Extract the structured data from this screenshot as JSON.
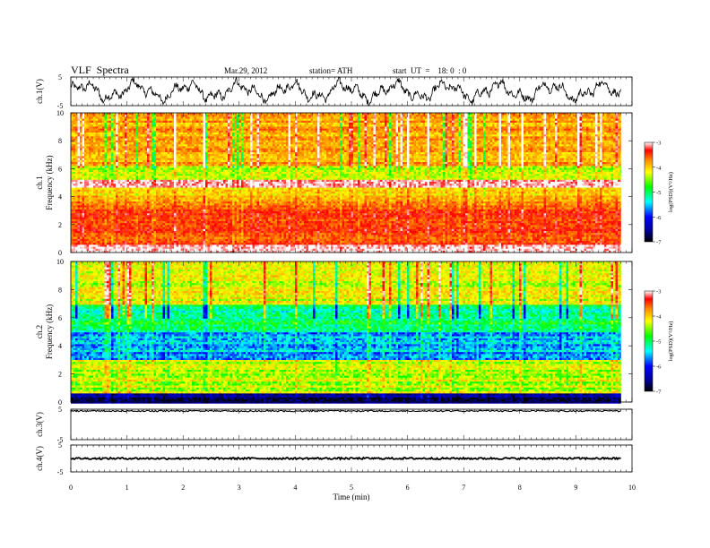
{
  "header": {
    "title": "VLF  Spectra",
    "date": "Mar.29, 2012",
    "station": "station= ATH",
    "start_time": "start  UT  =    18: 0  : 0"
  },
  "chart_data": [
    {
      "type": "line",
      "panel": "ch1-waveform",
      "ylabel": "ch.1(V)",
      "ylim": [
        -5,
        5
      ],
      "yticks": [
        "5",
        "-5"
      ],
      "x_unit": "min",
      "xlim": [
        0,
        10
      ],
      "x_end": 9.8,
      "trace": "oscillating waveform with amplitude about ±3 V"
    },
    {
      "type": "heatmap",
      "panel": "ch1-spectrogram",
      "ylabel_lines": [
        "ch.1",
        "Frequency  (kHz)"
      ],
      "ylim": [
        0,
        10
      ],
      "yticks": [
        "0",
        "2",
        "4",
        "6",
        "8",
        "10"
      ],
      "xlim": [
        0,
        10
      ],
      "x_end": 9.8,
      "colorbar": {
        "label": "log(PSD)(V²/Hz)",
        "range": [
          -7,
          -3
        ],
        "ticks": [
          "-3",
          "-4",
          "-5",
          "-6",
          "-7"
        ]
      },
      "band_profile": [
        {
          "from_khz": 0.0,
          "to_khz": 0.5,
          "log_psd": -3.2
        },
        {
          "from_khz": 0.5,
          "to_khz": 3.4,
          "log_psd": -3.7
        },
        {
          "from_khz": 3.4,
          "to_khz": 4.6,
          "log_psd": -4.2
        },
        {
          "from_khz": 4.6,
          "to_khz": 5.2,
          "log_psd": -3.3
        },
        {
          "from_khz": 5.2,
          "to_khz": 6.2,
          "log_psd": -4.6
        },
        {
          "from_khz": 6.2,
          "to_khz": 10.0,
          "log_psd": -4.1
        }
      ]
    },
    {
      "type": "heatmap",
      "panel": "ch2-spectrogram",
      "ylabel_lines": [
        "ch.2",
        "Frequency  (kHz)"
      ],
      "ylim": [
        0,
        10
      ],
      "yticks": [
        "0",
        "2",
        "4",
        "6",
        "8",
        "10"
      ],
      "xlim": [
        0,
        10
      ],
      "x_end": 9.8,
      "colorbar": {
        "label": "log(PSD)(V²/Hz)",
        "range": [
          -7,
          -3
        ],
        "ticks": [
          "-3",
          "-4",
          "-5",
          "-6",
          "-7"
        ]
      },
      "band_profile": [
        {
          "from_khz": 0.0,
          "to_khz": 0.7,
          "log_psd": -6.6
        },
        {
          "from_khz": 0.7,
          "to_khz": 3.0,
          "log_psd": -4.6
        },
        {
          "from_khz": 3.0,
          "to_khz": 5.0,
          "log_psd": -5.6
        },
        {
          "from_khz": 5.0,
          "to_khz": 7.0,
          "log_psd": -5.2
        },
        {
          "from_khz": 7.0,
          "to_khz": 10.0,
          "log_psd": -4.5
        }
      ]
    },
    {
      "type": "line",
      "panel": "ch3-waveform",
      "ylabel": "ch.3(V)",
      "ylim": [
        -5,
        5
      ],
      "yticks": [
        "5",
        "-5"
      ],
      "xlim": [
        0,
        10
      ],
      "x_end": 9.8,
      "level": 5
    },
    {
      "type": "line",
      "panel": "ch4-waveform",
      "ylabel": "ch.4(V)",
      "ylim": [
        -5,
        5
      ],
      "yticks": [
        "5",
        "-5"
      ],
      "xlim": [
        0,
        10
      ],
      "x_end": 9.8,
      "level": 0,
      "xlabel": "Time  (min)",
      "xticks": [
        "0",
        "1",
        "2",
        "3",
        "4",
        "5",
        "6",
        "7",
        "8",
        "9",
        "10"
      ]
    }
  ],
  "colors": {
    "colormap": [
      "#000000",
      "#0000a0",
      "#0000ff",
      "#00ffff",
      "#00ff00",
      "#ffff00",
      "#ff8c00",
      "#ff0000",
      "#ffffff"
    ],
    "axis": "#000000",
    "trace": "#000000"
  }
}
